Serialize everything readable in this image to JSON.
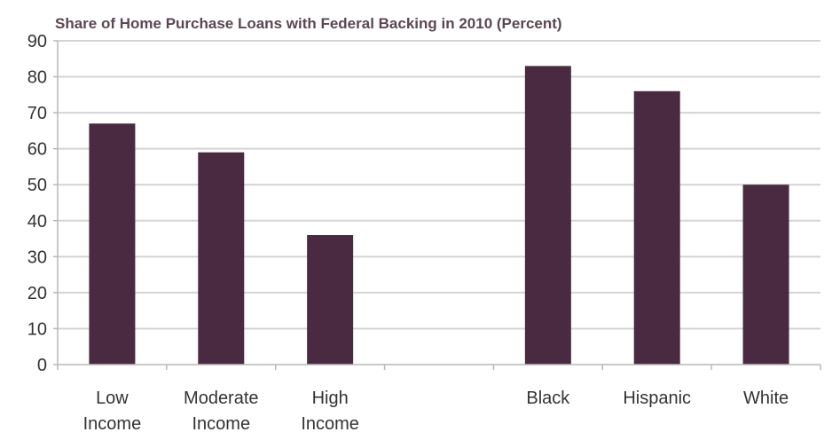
{
  "chart_data": {
    "type": "bar",
    "title": "Share of Home Purchase Loans with Federal Backing in 2010 (Percent)",
    "xlabel": "",
    "ylabel": "",
    "ylim": [
      0,
      90
    ],
    "yticks": [
      0,
      10,
      20,
      30,
      40,
      50,
      60,
      70,
      80,
      90
    ],
    "grid": true,
    "legend": "none",
    "categories": [
      [
        "Low",
        "Income"
      ],
      [
        "Moderate",
        "Income"
      ],
      [
        "High",
        "Income"
      ],
      [],
      [
        "Black"
      ],
      [
        "Hispanic"
      ],
      [
        "White"
      ]
    ],
    "values": [
      67,
      59,
      36,
      null,
      83,
      76,
      50
    ],
    "bar_color": "#4a2a40",
    "grid_color": "#d4d4d4",
    "axis_color": "#b8b8b8"
  }
}
